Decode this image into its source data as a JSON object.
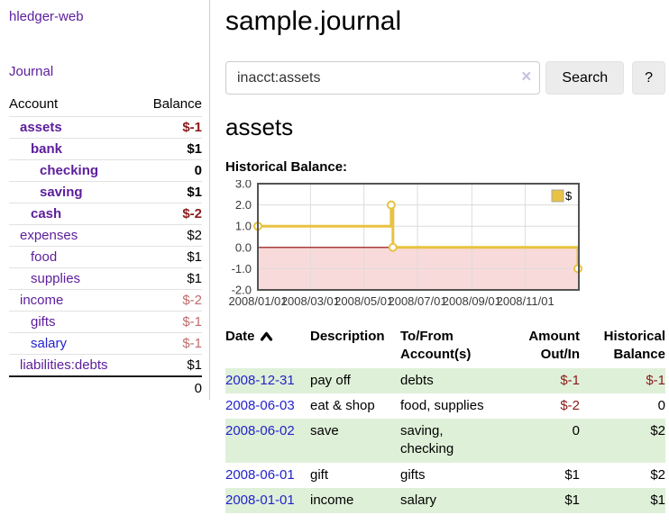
{
  "app": {
    "title": "hledger-web"
  },
  "sidebar": {
    "nav_journal": "Journal",
    "accounts_table": {
      "headers": [
        "Account",
        "Balance"
      ],
      "rows": [
        {
          "name": "assets",
          "depth": 1,
          "bold": true,
          "link_color": "purple",
          "balance": "$-1",
          "balance_style": "negative"
        },
        {
          "name": "bank",
          "depth": 2,
          "bold": true,
          "link_color": "purple",
          "balance": "$1",
          "balance_style": "normal"
        },
        {
          "name": "checking",
          "depth": 3,
          "bold": true,
          "link_color": "purple",
          "balance": "0",
          "balance_style": "normal"
        },
        {
          "name": "saving",
          "depth": 3,
          "bold": true,
          "link_color": "purple",
          "balance": "$1",
          "balance_style": "normal"
        },
        {
          "name": "cash",
          "depth": 2,
          "bold": true,
          "link_color": "purple",
          "balance": "$-2",
          "balance_style": "negative"
        },
        {
          "name": "expenses",
          "depth": 1,
          "bold": false,
          "link_color": "purple",
          "balance": "$2",
          "balance_style": "normal"
        },
        {
          "name": "food",
          "depth": 2,
          "bold": false,
          "link_color": "purple",
          "balance": "$1",
          "balance_style": "normal"
        },
        {
          "name": "supplies",
          "depth": 2,
          "bold": false,
          "link_color": "purple",
          "balance": "$1",
          "balance_style": "normal"
        },
        {
          "name": "income",
          "depth": 1,
          "bold": false,
          "link_color": "purple",
          "balance": "$-2",
          "balance_style": "negative-soft"
        },
        {
          "name": "gifts",
          "depth": 2,
          "bold": false,
          "link_color": "purple",
          "balance": "$-1",
          "balance_style": "negative-soft"
        },
        {
          "name": "salary",
          "depth": 2,
          "bold": false,
          "link_color": "blue",
          "balance": "$-1",
          "balance_style": "negative-soft"
        },
        {
          "name": "liabilities:debts",
          "depth": 1,
          "bold": false,
          "link_color": "purple",
          "balance": "$1",
          "balance_style": "normal"
        }
      ],
      "total": "0"
    }
  },
  "main": {
    "title": "sample.journal",
    "account_heading": "assets",
    "chart_heading": "Historical Balance:"
  },
  "search": {
    "value": "inacct:assets",
    "clear_icon": "×",
    "button_label": "Search",
    "help_label": "?"
  },
  "chart_data": {
    "type": "line",
    "subtype": "step-post",
    "title": "Historical Balance:",
    "series": [
      {
        "name": "$",
        "color": "#e8c240",
        "marker": "open-circle",
        "points": [
          {
            "date": "2008-01-01",
            "value": 1
          },
          {
            "date": "2008-06-01",
            "value": 2
          },
          {
            "date": "2008-06-03",
            "value": 0
          },
          {
            "date": "2008-12-31",
            "value": -1
          }
        ]
      }
    ],
    "x_range": [
      "2008-01-01",
      "2009-01-01"
    ],
    "x_ticks": [
      {
        "date": "2008-01-01",
        "label": "2008/01/01"
      },
      {
        "date": "2008-03-01",
        "label": "2008/03/01"
      },
      {
        "date": "2008-05-01",
        "label": "2008/05/01"
      },
      {
        "date": "2008-07-01",
        "label": "2008/07/01"
      },
      {
        "date": "2008-09-01",
        "label": "2008/09/01"
      },
      {
        "date": "2008-11-01",
        "label": "2008/11/01"
      }
    ],
    "y_ticks": [
      "3.0",
      "2.0",
      "1.0",
      "0.0",
      "-1.0",
      "-2.0"
    ],
    "ylim": [
      -2,
      3
    ],
    "grid": true,
    "legend": {
      "label": "$",
      "position": "top-right"
    },
    "negative_region": {
      "shaded": true,
      "fill": "#f9dada",
      "zero_line_color": "#8b0000"
    }
  },
  "register": {
    "headers": {
      "date": "Date",
      "sort_icon": "caret-up",
      "description": "Description",
      "account": "To/From Account(s)",
      "amount": "Amount Out/In",
      "balance": "Historical Balance"
    },
    "rows": [
      {
        "date": "2008-12-31",
        "description": "pay off",
        "accounts": "debts",
        "amount": "$-1",
        "amount_style": "negative",
        "balance": "$-1",
        "balance_style": "negative"
      },
      {
        "date": "2008-06-03",
        "description": "eat & shop",
        "accounts": "food, supplies",
        "amount": "$-2",
        "amount_style": "negative",
        "balance": "0",
        "balance_style": "normal"
      },
      {
        "date": "2008-06-02",
        "description": "save",
        "accounts": "saving, checking",
        "amount": "0",
        "amount_style": "normal",
        "balance": "$2",
        "balance_style": "normal"
      },
      {
        "date": "2008-06-01",
        "description": "gift",
        "accounts": "gifts",
        "amount": "$1",
        "amount_style": "normal",
        "balance": "$2",
        "balance_style": "normal"
      },
      {
        "date": "2008-01-01",
        "description": "income",
        "accounts": "salary",
        "amount": "$1",
        "amount_style": "normal",
        "balance": "$1",
        "balance_style": "normal"
      }
    ]
  },
  "colors": {
    "link_purple": "#5c1d9c",
    "link_blue": "#2323cc",
    "negative": "#8b1a1a",
    "negative_soft": "#c06c6c",
    "stripe_green": "#dff0d8",
    "chart_gold": "#e8c240",
    "chart_negative_fill": "#f9dada",
    "chart_zero_line": "#8b0000"
  }
}
